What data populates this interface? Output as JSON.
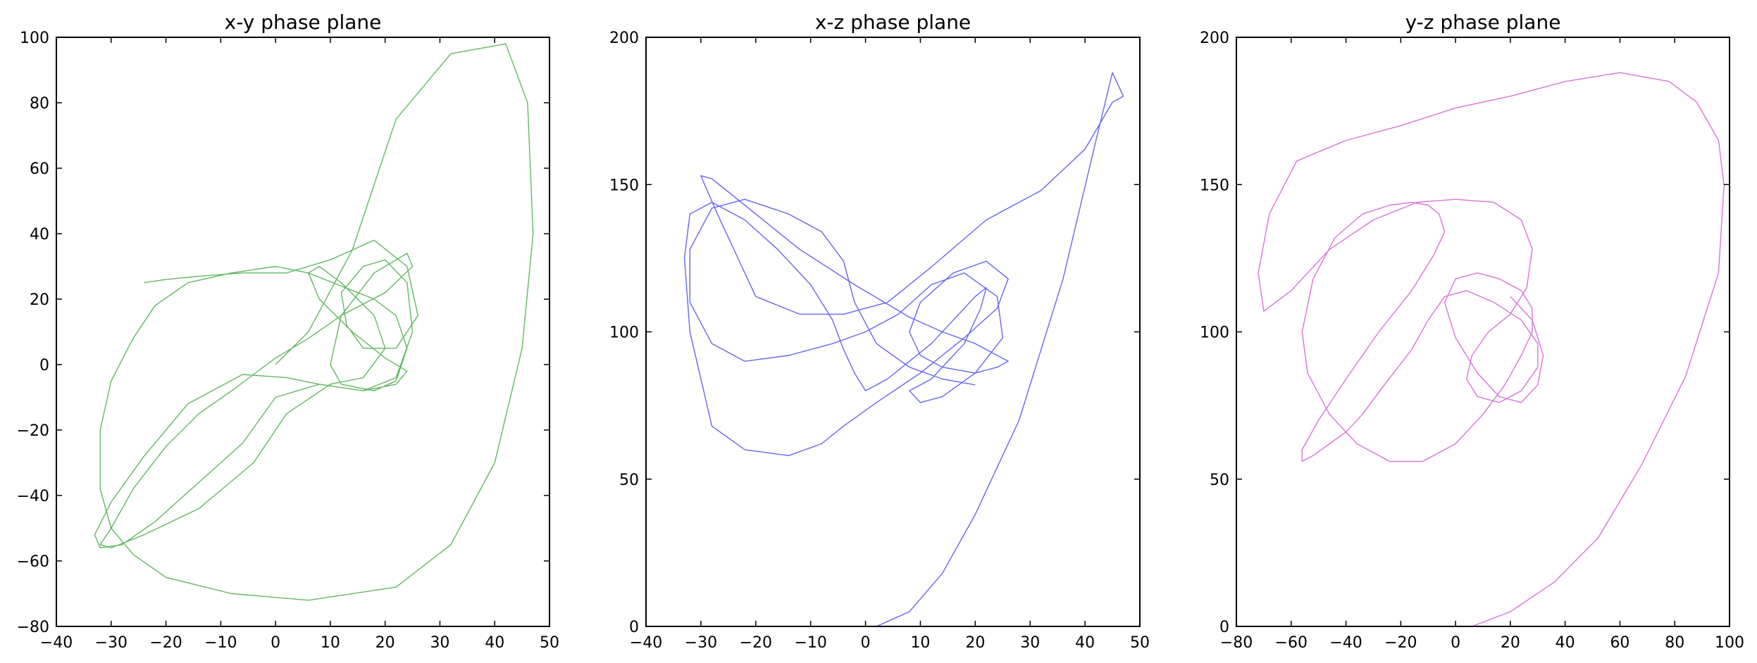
{
  "chart_data": [
    {
      "type": "line",
      "title": "x-y phase plane",
      "xlabel": "",
      "ylabel": "",
      "xlim": [
        -40,
        50
      ],
      "ylim": [
        -80,
        100
      ],
      "xticks": [
        -40,
        -30,
        -20,
        -10,
        0,
        10,
        20,
        30,
        40,
        50
      ],
      "yticks": [
        -80,
        -60,
        -40,
        -20,
        0,
        20,
        40,
        60,
        80,
        100
      ],
      "grid": false,
      "series": [
        {
          "color": "#2ca02c",
          "x": [
            0,
            6,
            14,
            22,
            32,
            42,
            46,
            47,
            45,
            40,
            32,
            22,
            6,
            -8,
            -20,
            -26,
            -30,
            -32,
            -32,
            -30,
            -26,
            -22,
            -16,
            -8,
            0,
            6,
            12,
            18,
            22,
            24,
            22,
            18,
            12,
            10,
            12,
            18,
            24,
            25,
            20,
            12,
            6,
            0,
            -4,
            -8,
            -14,
            -20,
            -26,
            -30,
            -32,
            -30,
            -24,
            -14,
            -4,
            2,
            10,
            16,
            20,
            18,
            12,
            8,
            6,
            8,
            14,
            20,
            24,
            22,
            16,
            8,
            2,
            -6,
            -16,
            -24,
            -30,
            -33,
            -32,
            -28,
            -22,
            -14,
            -6,
            0,
            8,
            16,
            22,
            25,
            24,
            20,
            16,
            12,
            13,
            16,
            22,
            26,
            24,
            18,
            10,
            2,
            -6,
            -14,
            -20,
            -24
          ],
          "y": [
            0,
            10,
            35,
            75,
            95,
            98,
            80,
            40,
            5,
            -30,
            -55,
            -68,
            -72,
            -70,
            -65,
            -58,
            -50,
            -38,
            -20,
            -5,
            8,
            18,
            25,
            28,
            30,
            28,
            24,
            20,
            15,
            5,
            -5,
            -8,
            -6,
            0,
            15,
            28,
            34,
            30,
            22,
            15,
            8,
            2,
            -3,
            -8,
            -15,
            -25,
            -38,
            -50,
            -55,
            -56,
            -52,
            -44,
            -30,
            -15,
            -6,
            -4,
            5,
            15,
            25,
            30,
            28,
            20,
            10,
            2,
            -2,
            -6,
            -8,
            -6,
            -4,
            -3,
            -12,
            -28,
            -42,
            -52,
            -56,
            -55,
            -48,
            -36,
            -24,
            -10,
            -6,
            -8,
            -4,
            10,
            25,
            32,
            30,
            22,
            12,
            5,
            5,
            15,
            30,
            38,
            32,
            28,
            28,
            27,
            26,
            25
          ]
        }
      ]
    },
    {
      "type": "line",
      "title": "x-z phase plane",
      "xlabel": "",
      "ylabel": "",
      "xlim": [
        -40,
        50
      ],
      "ylim": [
        0,
        200
      ],
      "xticks": [
        -40,
        -30,
        -20,
        -10,
        0,
        10,
        20,
        30,
        40,
        50
      ],
      "yticks": [
        0,
        50,
        100,
        150,
        200
      ],
      "grid": false,
      "series": [
        {
          "color": "#3333ee",
          "x": [
            2,
            8,
            14,
            20,
            28,
            36,
            42,
            45,
            47,
            45,
            40,
            32,
            22,
            12,
            4,
            -4,
            -12,
            -20,
            -27,
            -30,
            -28,
            -20,
            -12,
            -2,
            8,
            14,
            20,
            24,
            26,
            24,
            20,
            14,
            10,
            8,
            10,
            16,
            22,
            26,
            24,
            18,
            10,
            2,
            -4,
            -8,
            -14,
            -22,
            -28,
            -32,
            -33,
            -32,
            -28,
            -22,
            -16,
            -10,
            -6,
            -4,
            -2,
            0,
            4,
            8,
            12,
            16,
            20,
            22,
            21,
            18,
            12,
            8,
            10,
            14,
            20,
            25,
            24,
            18,
            12,
            6,
            0,
            -6,
            -14,
            -22,
            -28,
            -32,
            -32,
            -28,
            -22,
            -14,
            -8,
            -4,
            -2,
            2,
            8,
            14,
            20
          ],
          "y": [
            0,
            5,
            18,
            38,
            70,
            118,
            165,
            188,
            180,
            178,
            162,
            148,
            138,
            122,
            110,
            106,
            106,
            112,
            140,
            153,
            152,
            140,
            128,
            116,
            105,
            100,
            96,
            92,
            90,
            88,
            86,
            88,
            92,
            100,
            110,
            120,
            124,
            118,
            108,
            98,
            86,
            76,
            68,
            62,
            58,
            60,
            68,
            100,
            125,
            140,
            144,
            138,
            128,
            116,
            104,
            94,
            86,
            80,
            84,
            90,
            96,
            104,
            112,
            115,
            108,
            96,
            84,
            80,
            76,
            78,
            86,
            98,
            112,
            120,
            116,
            106,
            100,
            96,
            92,
            90,
            96,
            110,
            128,
            142,
            145,
            140,
            134,
            124,
            110,
            96,
            88,
            84,
            82
          ]
        }
      ]
    },
    {
      "type": "line",
      "title": "y-z phase plane",
      "xlabel": "",
      "ylabel": "",
      "xlim": [
        -80,
        100
      ],
      "ylim": [
        0,
        200
      ],
      "xticks": [
        -80,
        -60,
        -40,
        -20,
        0,
        20,
        40,
        60,
        80,
        100
      ],
      "yticks": [
        0,
        50,
        100,
        150,
        200
      ],
      "grid": false,
      "series": [
        {
          "color": "#cc44cc",
          "x": [
            6,
            20,
            36,
            52,
            68,
            84,
            96,
            98,
            96,
            88,
            78,
            60,
            40,
            20,
            0,
            -20,
            -40,
            -58,
            -68,
            -72,
            -70,
            -60,
            -46,
            -30,
            -14,
            0,
            14,
            24,
            28,
            26,
            20,
            12,
            6,
            4,
            8,
            16,
            24,
            30,
            30,
            24,
            14,
            4,
            -4,
            -10,
            -16,
            -26,
            -34,
            -40,
            -46,
            -52,
            -56,
            -56,
            -50,
            -40,
            -28,
            -16,
            -8,
            -4,
            -6,
            -10,
            -16,
            -24,
            -34,
            -44,
            -52,
            -56,
            -54,
            -46,
            -36,
            -24,
            -12,
            0,
            10,
            18,
            24,
            28,
            28,
            24,
            16,
            8,
            0,
            -4,
            0,
            8,
            16,
            24,
            30,
            32,
            28,
            20
          ],
          "y": [
            0,
            5,
            15,
            30,
            55,
            85,
            120,
            150,
            165,
            178,
            185,
            188,
            185,
            180,
            176,
            170,
            165,
            158,
            140,
            120,
            107,
            114,
            128,
            138,
            144,
            145,
            144,
            138,
            128,
            115,
            106,
            100,
            92,
            84,
            78,
            76,
            80,
            88,
            96,
            104,
            110,
            114,
            112,
            104,
            94,
            82,
            72,
            66,
            62,
            58,
            56,
            60,
            70,
            84,
            100,
            114,
            126,
            134,
            140,
            143,
            144,
            143,
            140,
            132,
            118,
            100,
            86,
            72,
            62,
            56,
            56,
            62,
            72,
            82,
            92,
            100,
            108,
            114,
            118,
            120,
            118,
            110,
            98,
            86,
            78,
            76,
            82,
            92,
            104,
            112
          ]
        }
      ]
    }
  ]
}
